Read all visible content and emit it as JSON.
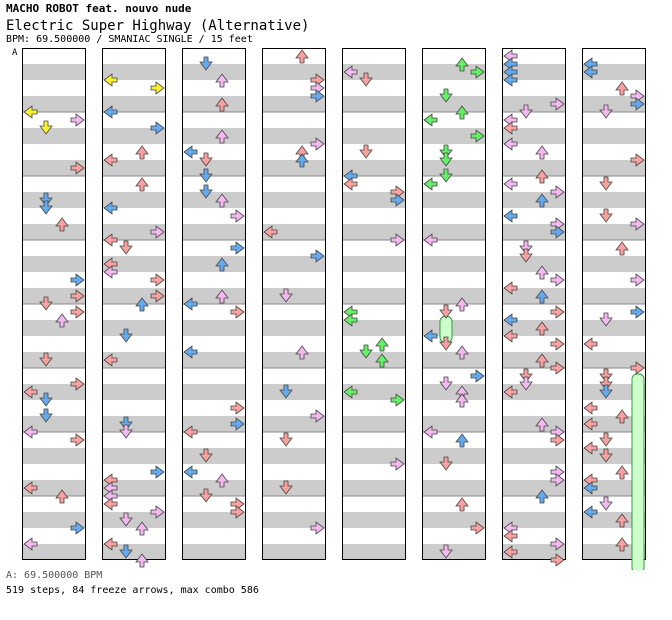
{
  "header": {
    "artist": "MACHO ROBOT feat. nouvo nude",
    "title": "Electric Super Highway (Alternative)",
    "meta": "BPM: 69.500000 / SMANIAC SINGLE / 15 feet"
  },
  "segment_marker": "A",
  "footer": {
    "bpm_line": "A: 69.500000 BPM",
    "stats_line": "519 steps, 84 freeze arrows, max combo 586"
  },
  "colors": {
    "stripe_gray": "#cccccc",
    "measure_line": "#888888",
    "arrow_red": "#f9a0a0",
    "arrow_blue": "#66aaee",
    "arrow_pink": "#f4b8f0",
    "arrow_yellow": "#f8f030",
    "arrow_green": "#66ee66",
    "freeze_green": "#ccffcc"
  },
  "chart_data": {
    "type": "step-chart",
    "columns": 8,
    "measures_per_column": 8,
    "lanes": [
      "left",
      "down",
      "up",
      "right"
    ],
    "freeze_arrows": [
      {
        "column": 6,
        "lane": 1,
        "from": 4.1,
        "to": 4.6
      },
      {
        "column": 8,
        "lane": 3,
        "from": 5.0,
        "to": 8.2
      }
    ]
  }
}
